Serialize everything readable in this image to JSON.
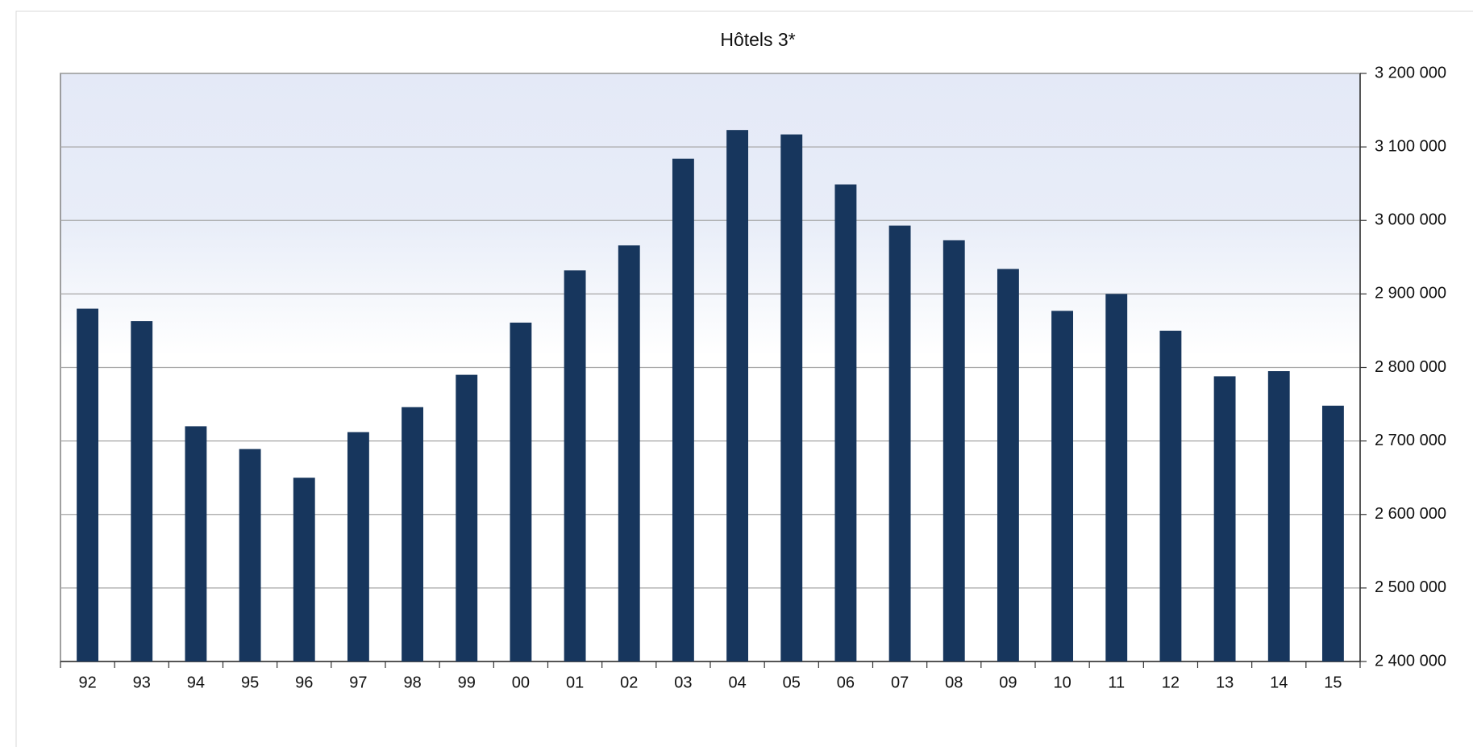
{
  "chart_data": {
    "type": "bar",
    "title": "Hôtels 3*",
    "categories": [
      "92",
      "93",
      "94",
      "95",
      "96",
      "97",
      "98",
      "99",
      "00",
      "01",
      "02",
      "03",
      "04",
      "05",
      "06",
      "07",
      "08",
      "09",
      "10",
      "11",
      "12",
      "13",
      "14",
      "15"
    ],
    "values": [
      2880000,
      2863000,
      2720000,
      2689000,
      2650000,
      2712000,
      2746000,
      2790000,
      2861000,
      2932000,
      2966000,
      3084000,
      3123000,
      3117000,
      3049000,
      2993000,
      2973000,
      2934000,
      2877000,
      2900000,
      2850000,
      2788000,
      2795000,
      2748000
    ],
    "color": "#17365d",
    "ylim": [
      2400000,
      3200000
    ],
    "yticks": [
      {
        "value": 2400000,
        "label": "2 400 000"
      },
      {
        "value": 2500000,
        "label": "2 500 000"
      },
      {
        "value": 2600000,
        "label": "2 600 000"
      },
      {
        "value": 2700000,
        "label": "2 700 000"
      },
      {
        "value": 2800000,
        "label": "2 800 000"
      },
      {
        "value": 2900000,
        "label": "2 900 000"
      },
      {
        "value": 3000000,
        "label": "3 000 000"
      },
      {
        "value": 3100000,
        "label": "3 100 000"
      },
      {
        "value": 3200000,
        "label": "3 200 000"
      }
    ],
    "grid": true,
    "y_axis_side": "right"
  }
}
